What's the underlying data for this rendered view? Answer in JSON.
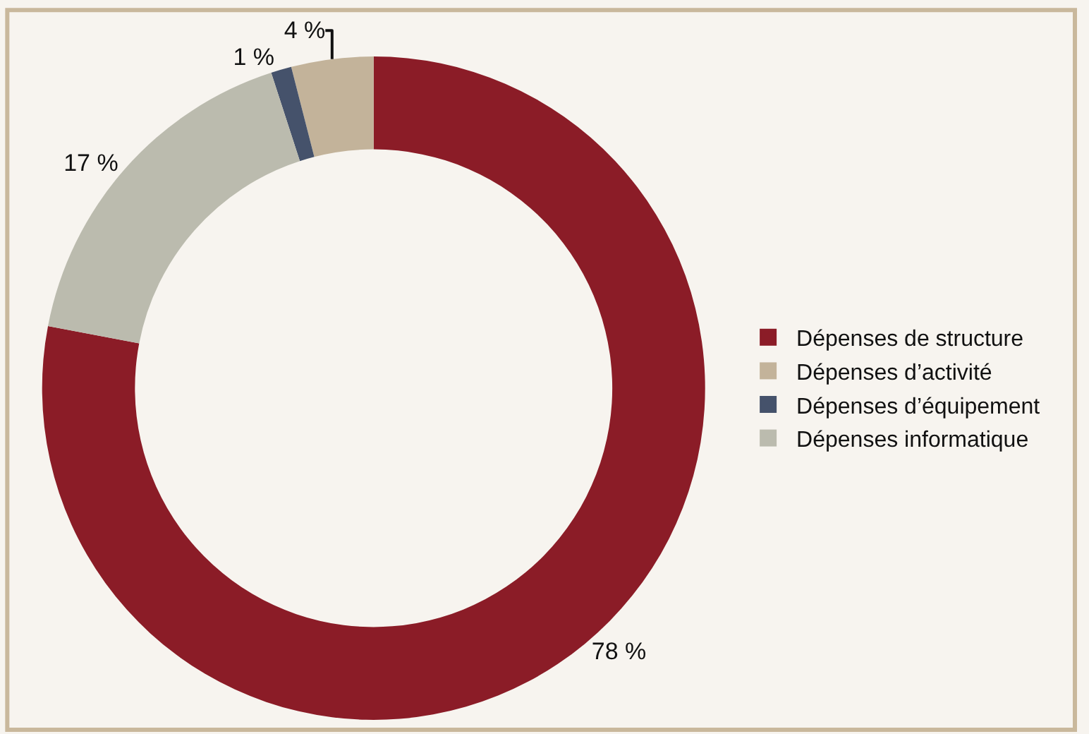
{
  "chart_data": {
    "type": "donut",
    "categories": [
      "Dépenses de structure",
      "Dépenses d’activité",
      "Dépenses d’équipement",
      "Dépenses informatique"
    ],
    "values": [
      78,
      4,
      1,
      17
    ],
    "value_labels": [
      "78 %",
      "4 %",
      "1 %",
      "17 %"
    ],
    "colors": [
      "#8b1c27",
      "#c3b39a",
      "#45526b",
      "#bbbbae"
    ],
    "legend": "right"
  }
}
